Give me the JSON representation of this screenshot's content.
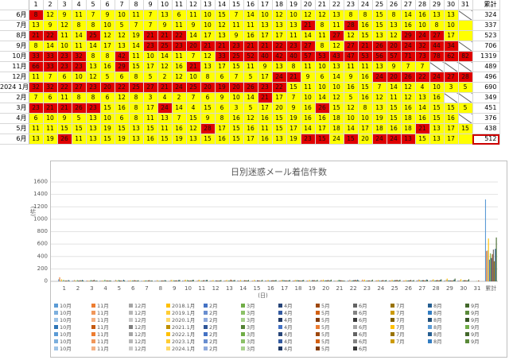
{
  "table": {
    "total_header": "累計",
    "days": [
      "1",
      "2",
      "3",
      "4",
      "5",
      "6",
      "7",
      "8",
      "9",
      "10",
      "11",
      "12",
      "13",
      "14",
      "15",
      "16",
      "17",
      "18",
      "19",
      "20",
      "21",
      "22",
      "23",
      "24",
      "25",
      "26",
      "27",
      "28",
      "29",
      "30",
      "31"
    ],
    "rows": [
      {
        "label": "6月",
        "cells": [
          "8",
          "12",
          "9",
          "11",
          "7",
          "9",
          "10",
          "11",
          "7",
          "13",
          "6",
          "11",
          "10",
          "15",
          "7",
          "14",
          "10",
          "12",
          "10",
          "12",
          "12",
          "13",
          "8",
          "8",
          "15",
          "8",
          "14",
          "16",
          "13",
          "13",
          ""
        ],
        "colors": "ryyyyyyyyyyyyyyyyyyyyyyyyyyyyy-",
        "total": "324"
      },
      {
        "label": "7月",
        "cells": [
          "13",
          "9",
          "12",
          "8",
          "8",
          "10",
          "5",
          "7",
          "7",
          "9",
          "11",
          "9",
          "10",
          "12",
          "11",
          "11",
          "13",
          "13",
          "13",
          "21",
          "8",
          "11",
          "28",
          "16",
          "15",
          "13",
          "16",
          "10",
          "8",
          "10",
          ""
        ],
        "colors": "yyyyyyyyyyyyyyyyyyyryyryyyyyyyy",
        "total": "337"
      },
      {
        "label": "8月",
        "cells": [
          "21",
          "22",
          "11",
          "14",
          "25",
          "12",
          "12",
          "19",
          "21",
          "21",
          "22",
          "14",
          "17",
          "13",
          "9",
          "16",
          "17",
          "17",
          "11",
          "14",
          "11",
          "27",
          "12",
          "15",
          "13",
          "12",
          "29",
          "24",
          "27",
          "17",
          ""
        ],
        "colors": "rryyryyyrrryyyyyyyyyyryyyyrrryy",
        "total": "523"
      },
      {
        "label": "9月",
        "cells": [
          "8",
          "14",
          "10",
          "11",
          "14",
          "17",
          "13",
          "14",
          "23",
          "25",
          "23",
          "20",
          "21",
          "21",
          "23",
          "21",
          "21",
          "22",
          "23",
          "27",
          "8",
          "12",
          "27",
          "21",
          "26",
          "20",
          "24",
          "32",
          "44",
          "34",
          ""
        ],
        "colors": "yyyyyyyyrrrrrrrrrrrryyrrrrrrrr-",
        "total": "706"
      },
      {
        "label": "10月",
        "cells": [
          "33",
          "33",
          "23",
          "32",
          "8",
          "8",
          "42",
          "11",
          "10",
          "14",
          "11",
          "7",
          "12",
          "33",
          "25",
          "52",
          "40",
          "42",
          "40",
          "57",
          "53",
          "43",
          "47",
          "53",
          "56",
          "57",
          "71",
          "73",
          "78",
          "62",
          "82"
        ],
        "colors": "rrrryyryyyyyyrrrrrrrrrrrrrrrrrr",
        "total": "1319"
      },
      {
        "label": "11月",
        "cells": [
          "66",
          "33",
          "23",
          "23",
          "13",
          "16",
          "29",
          "15",
          "17",
          "12",
          "16",
          "21",
          "13",
          "17",
          "15",
          "11",
          "9",
          "13",
          "8",
          "11",
          "10",
          "13",
          "11",
          "11",
          "13",
          "9",
          "7",
          "7",
          "",
          "",
          " "
        ],
        "colors": "rrrryyryyyyryyyyyyyyyyyyyyyy---",
        "total": "489"
      },
      {
        "label": "12月",
        "cells": [
          "11",
          "7",
          "6",
          "10",
          "12",
          "5",
          "6",
          "8",
          "5",
          "2",
          "12",
          "10",
          "8",
          "6",
          "7",
          "5",
          "17",
          "24",
          "21",
          "9",
          "6",
          "14",
          "9",
          "16",
          "24",
          "20",
          "26",
          "22",
          "24",
          "27",
          "28"
        ],
        "colors": "yyyyyyyyyyyyyyyyyrryyyyyrrrrrrr",
        "total": "496"
      },
      {
        "label": "2024 1月",
        "cells": [
          "32",
          "32",
          "22",
          "27",
          "23",
          "20",
          "22",
          "25",
          "27",
          "21",
          "24",
          "25",
          "20",
          "19",
          "20",
          "26",
          "23",
          "22",
          "15",
          "11",
          "10",
          "10",
          "16",
          "15",
          "7",
          "14",
          "12",
          "4",
          "10",
          "3",
          "5"
        ],
        "colors": "rrrrrrrrrrrrrrrrrryyyyyyyyyyyyy",
        "total": "690"
      },
      {
        "label": "2月",
        "cells": [
          "7",
          "6",
          "11",
          "8",
          "8",
          "6",
          "12",
          "8",
          "3",
          "4",
          "2",
          "7",
          "6",
          "9",
          "10",
          "14",
          "21",
          "17",
          "7",
          "10",
          "14",
          "12",
          "5",
          "16",
          "12",
          "11",
          "12",
          "13",
          "16",
          "",
          ""
        ],
        "colors": "yyyyyyyyyyyyyyyyryyyyyyyyyyyy--",
        "total": "349"
      },
      {
        "label": "3月",
        "cells": [
          "23",
          "21",
          "21",
          "26",
          "23",
          "15",
          "16",
          "8",
          "17",
          "24",
          "14",
          "4",
          "15",
          "6",
          "3",
          "5",
          "17",
          "20",
          "9",
          "16",
          "26",
          "15",
          "12",
          "8",
          "13",
          "15",
          "16",
          "14",
          "15",
          "15",
          "5"
        ],
        "colors": "rrrrryyyyryyyyyyyyyyryyyyyyyyyy",
        "total": "451"
      },
      {
        "label": "4月",
        "cells": [
          "6",
          "10",
          "9",
          "5",
          "13",
          "10",
          "6",
          "8",
          "11",
          "13",
          "7",
          "15",
          "9",
          "8",
          "16",
          "12",
          "16",
          "15",
          "19",
          "16",
          "16",
          "18",
          "10",
          "10",
          "19",
          "15",
          "18",
          "16",
          "15",
          "16",
          ""
        ],
        "colors": "yyyyyyyyyyyyyyyyyyyyyyyyyyyyyy-",
        "total": "376"
      },
      {
        "label": "5月",
        "cells": [
          "11",
          "11",
          "15",
          "15",
          "13",
          "19",
          "15",
          "13",
          "15",
          "11",
          "16",
          "12",
          "28",
          "17",
          "15",
          "16",
          "11",
          "15",
          "17",
          "14",
          "17",
          "18",
          "14",
          "17",
          "18",
          "16",
          "18",
          "21",
          "13",
          "17",
          "15"
        ],
        "colors": "yyyyyyyyyyyyryyyyyyyyyyyyyyryyy",
        "total": "438"
      },
      {
        "label": "6月",
        "cells": [
          "13",
          "19",
          "26",
          "11",
          "13",
          "15",
          "19",
          "13",
          "16",
          "15",
          "19",
          "13",
          "15",
          "16",
          "15",
          "17",
          "16",
          "13",
          "19",
          "23",
          "15",
          "24",
          "15",
          "20",
          "24",
          "24",
          "13",
          "15",
          "13",
          "17",
          ""
        ],
        "colors": "yyryyyyyyyyyyyyyyyyrryryrrryyyy-",
        "total": "512"
      }
    ]
  },
  "chart_data": {
    "type": "bar",
    "title": "日別迷惑メール着信件数",
    "ylabel": "(件)",
    "xlabel": "(日)",
    "ylim": [
      0,
      1600
    ],
    "yticks": [
      0,
      200,
      400,
      600,
      800,
      1000,
      1200,
      1400,
      1600
    ],
    "categories": [
      "1",
      "2",
      "3",
      "4",
      "5",
      "6",
      "7",
      "8",
      "9",
      "10",
      "11",
      "12",
      "13",
      "14",
      "15",
      "16",
      "17",
      "18",
      "19",
      "20",
      "21",
      "22",
      "23",
      "24",
      "25",
      "26",
      "27",
      "28",
      "29",
      "30",
      "31",
      "累計"
    ],
    "grid": true,
    "legend_position": "bottom",
    "series": [
      {
        "name": "10月",
        "color": "#5b9bd5",
        "values": [
          33,
          12,
          9,
          11,
          7,
          9,
          10,
          11,
          7,
          13,
          6,
          11,
          10,
          15,
          7,
          14,
          10,
          12,
          10,
          12,
          12,
          13,
          8,
          8,
          15,
          8,
          14,
          16,
          13,
          13,
          0,
          1319
        ]
      },
      {
        "name": "11月",
        "color": "#ed7d31",
        "values": [
          66,
          9,
          12,
          8,
          8,
          10,
          5,
          7,
          7,
          9,
          11,
          9,
          10,
          12,
          11,
          11,
          13,
          13,
          13,
          21,
          8,
          11,
          28,
          16,
          15,
          13,
          16,
          10,
          8,
          10,
          0,
          489
        ]
      },
      {
        "name": "12月",
        "color": "#a5a5a5",
        "values": [
          11,
          22,
          11,
          14,
          25,
          12,
          12,
          19,
          21,
          21,
          22,
          14,
          17,
          13,
          9,
          16,
          17,
          17,
          11,
          14,
          11,
          27,
          12,
          15,
          13,
          12,
          29,
          24,
          27,
          17,
          0,
          496
        ]
      },
      {
        "name": "2018.1月",
        "color": "#ffc000",
        "values": [
          32,
          14,
          10,
          11,
          14,
          17,
          13,
          14,
          23,
          25,
          23,
          20,
          21,
          21,
          23,
          21,
          21,
          22,
          23,
          27,
          8,
          12,
          27,
          21,
          26,
          20,
          24,
          32,
          44,
          34,
          0,
          690
        ]
      },
      {
        "name": "2月",
        "color": "#4472c4",
        "values": [
          7,
          6,
          11,
          8,
          8,
          6,
          12,
          8,
          3,
          4,
          2,
          7,
          6,
          9,
          10,
          14,
          21,
          17,
          7,
          10,
          14,
          12,
          5,
          16,
          12,
          11,
          12,
          13,
          16,
          0,
          0,
          349
        ]
      },
      {
        "name": "3月",
        "color": "#70ad47",
        "values": [
          23,
          21,
          21,
          26,
          23,
          15,
          16,
          8,
          17,
          24,
          14,
          4,
          15,
          6,
          3,
          5,
          17,
          20,
          9,
          16,
          26,
          15,
          12,
          8,
          13,
          15,
          16,
          14,
          15,
          15,
          5,
          451
        ]
      },
      {
        "name": "4月",
        "color": "#264478",
        "values": [
          6,
          10,
          9,
          5,
          13,
          10,
          6,
          8,
          11,
          13,
          7,
          15,
          9,
          8,
          16,
          12,
          16,
          15,
          19,
          16,
          16,
          18,
          10,
          10,
          19,
          15,
          18,
          16,
          15,
          16,
          0,
          376
        ]
      },
      {
        "name": "5月",
        "color": "#9e480e",
        "values": [
          11,
          11,
          15,
          15,
          13,
          19,
          15,
          13,
          15,
          11,
          16,
          12,
          28,
          17,
          15,
          16,
          11,
          15,
          17,
          14,
          17,
          18,
          14,
          17,
          18,
          16,
          18,
          21,
          13,
          17,
          15,
          438
        ]
      },
      {
        "name": "6月",
        "color": "#636363",
        "values": [
          13,
          19,
          26,
          11,
          13,
          15,
          19,
          13,
          16,
          15,
          19,
          13,
          15,
          16,
          15,
          17,
          16,
          13,
          19,
          23,
          15,
          24,
          15,
          20,
          24,
          24,
          13,
          15,
          13,
          17,
          0,
          512
        ]
      },
      {
        "name": "7月",
        "color": "#997300",
        "values": [
          8,
          12,
          9,
          11,
          7,
          9,
          10,
          11,
          7,
          13,
          6,
          11,
          10,
          15,
          7,
          14,
          10,
          12,
          10,
          12,
          12,
          13,
          8,
          8,
          15,
          8,
          14,
          16,
          13,
          13,
          0,
          324
        ]
      },
      {
        "name": "8月",
        "color": "#255e91",
        "values": [
          21,
          22,
          11,
          14,
          25,
          12,
          12,
          19,
          21,
          21,
          22,
          14,
          17,
          13,
          9,
          16,
          17,
          17,
          11,
          14,
          11,
          27,
          12,
          15,
          13,
          12,
          29,
          24,
          27,
          17,
          0,
          523
        ]
      },
      {
        "name": "9月",
        "color": "#43682b",
        "values": [
          8,
          14,
          10,
          11,
          14,
          17,
          13,
          14,
          23,
          25,
          23,
          20,
          21,
          21,
          23,
          21,
          21,
          22,
          23,
          27,
          8,
          12,
          27,
          21,
          26,
          20,
          24,
          32,
          44,
          34,
          0,
          706
        ]
      }
    ],
    "legend_entries": [
      [
        "10月",
        "#5b9bd5"
      ],
      [
        "11月",
        "#ed7d31"
      ],
      [
        "12月",
        "#a5a5a5"
      ],
      [
        "2018.1月",
        "#ffc000"
      ],
      [
        "2月",
        "#4472c4"
      ],
      [
        "3月",
        "#70ad47"
      ],
      [
        "4月",
        "#264478"
      ],
      [
        "5月",
        "#9e480e"
      ],
      [
        "6月",
        "#636363"
      ],
      [
        "7月",
        "#997300"
      ],
      [
        "8月",
        "#255e91"
      ],
      [
        "9月",
        "#43682b"
      ],
      [
        "10月",
        "#7cafdd"
      ],
      [
        "11月",
        "#f1975a"
      ],
      [
        "12月",
        "#b7b7b7"
      ],
      [
        "2019.1月",
        "#ffcd33"
      ],
      [
        "2月",
        "#698ed0"
      ],
      [
        "3月",
        "#8cc168"
      ],
      [
        "4月",
        "#335aa1"
      ],
      [
        "5月",
        "#d26012"
      ],
      [
        "6月",
        "#848484"
      ],
      [
        "7月",
        "#cc9a00"
      ],
      [
        "8月",
        "#327dc2"
      ],
      [
        "9月",
        "#5a8a39"
      ],
      [
        "10月",
        "#9dc3e6"
      ],
      [
        "11月",
        "#f4b183"
      ],
      [
        "12月",
        "#c9c9c9"
      ],
      [
        "2020.1月",
        "#ffd966"
      ],
      [
        "2月",
        "#8faadc"
      ],
      [
        "3月",
        "#a9d18e"
      ],
      [
        "4月",
        "#1f3864"
      ],
      [
        "5月",
        "#843c0c"
      ],
      [
        "6月",
        "#3a3a3a"
      ],
      [
        "7月",
        "#7f6000"
      ],
      [
        "8月",
        "#1f4e79"
      ],
      [
        "9月",
        "#375623"
      ],
      [
        "10月",
        "#2e75b6"
      ],
      [
        "11月",
        "#c55a11"
      ],
      [
        "12月",
        "#7f7f7f"
      ],
      [
        "2021.1月",
        "#bf9000"
      ],
      [
        "2月",
        "#2f5597"
      ],
      [
        "3月",
        "#548235"
      ],
      [
        "4月",
        "#4472c4"
      ],
      [
        "5月",
        "#ed7d31"
      ],
      [
        "6月",
        "#a5a5a5"
      ],
      [
        "7月",
        "#ffc000"
      ],
      [
        "8月",
        "#5b9bd5"
      ],
      [
        "9月",
        "#70ad47"
      ],
      [
        "10月",
        "#5b9bd5"
      ],
      [
        "11月",
        "#ed7d31"
      ],
      [
        "12月",
        "#a5a5a5"
      ],
      [
        "2022.1月",
        "#ffc000"
      ],
      [
        "2月",
        "#4472c4"
      ],
      [
        "3月",
        "#70ad47"
      ],
      [
        "4月",
        "#264478"
      ],
      [
        "5月",
        "#9e480e"
      ],
      [
        "6月",
        "#636363"
      ],
      [
        "7月",
        "#997300"
      ],
      [
        "8月",
        "#255e91"
      ],
      [
        "9月",
        "#43682b"
      ],
      [
        "10月",
        "#7cafdd"
      ],
      [
        "11月",
        "#f1975a"
      ],
      [
        "12月",
        "#b7b7b7"
      ],
      [
        "2023.1月",
        "#ffcd33"
      ],
      [
        "2月",
        "#698ed0"
      ],
      [
        "3月",
        "#8cc168"
      ],
      [
        "4月",
        "#335aa1"
      ],
      [
        "5月",
        "#d26012"
      ],
      [
        "6月",
        "#848484"
      ],
      [
        "7月",
        "#cc9a00"
      ],
      [
        "8月",
        "#327dc2"
      ],
      [
        "9月",
        "#5a8a39"
      ],
      [
        "10月",
        "#9dc3e6"
      ],
      [
        "11月",
        "#f4b183"
      ],
      [
        "12月",
        "#c9c9c9"
      ],
      [
        "2024.1月",
        "#ffd966"
      ],
      [
        "2月",
        "#8faadc"
      ],
      [
        "3月",
        "#a9d18e"
      ],
      [
        "4月",
        "#1f3864"
      ],
      [
        "5月",
        "#843c0c"
      ],
      [
        "6月",
        "#3a3a3a"
      ]
    ]
  }
}
